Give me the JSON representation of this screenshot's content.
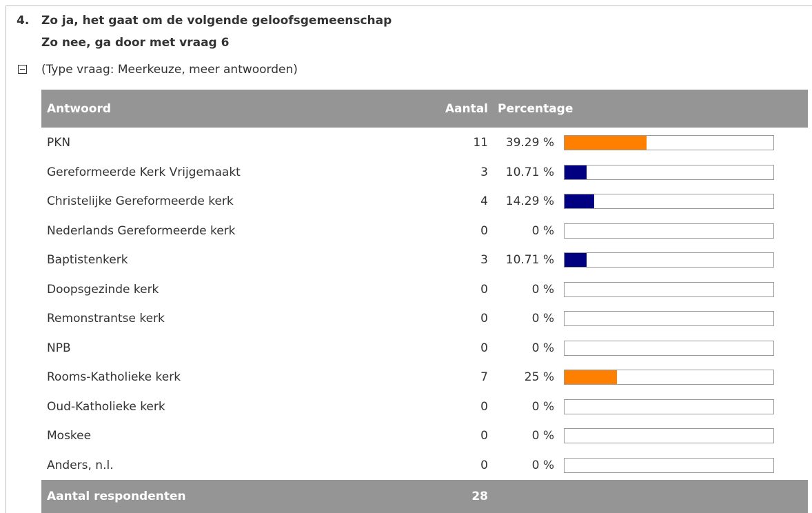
{
  "question": {
    "number": "4.",
    "line1": "Zo ja, het gaat om de volgende geloofsgemeenschap",
    "line2": "Zo nee, ga door met vraag 6",
    "type": "(Type vraag: Meerkeuze, meer antwoorden)"
  },
  "table": {
    "header": {
      "answer": "Antwoord",
      "count": "Aantal",
      "percentage": "Percentage"
    },
    "bar_scale": [
      0,
      100
    ],
    "rows": [
      {
        "label": "PKN",
        "count": 11,
        "percentage": 39.29,
        "percentage_label": "39.29 %",
        "color": "#ff8000"
      },
      {
        "label": "Gereformeerde Kerk Vrijgemaakt",
        "count": 3,
        "percentage": 10.71,
        "percentage_label": "10.71 %",
        "color": "#000080"
      },
      {
        "label": "Christelijke Gereformeerde kerk",
        "count": 4,
        "percentage": 14.29,
        "percentage_label": "14.29 %",
        "color": "#000080"
      },
      {
        "label": "Nederlands Gereformeerde kerk",
        "count": 0,
        "percentage": 0,
        "percentage_label": "0 %",
        "color": "#000080"
      },
      {
        "label": "Baptistenkerk",
        "count": 3,
        "percentage": 10.71,
        "percentage_label": "10.71 %",
        "color": "#000080"
      },
      {
        "label": "Doopsgezinde kerk",
        "count": 0,
        "percentage": 0,
        "percentage_label": "0 %",
        "color": "#000080"
      },
      {
        "label": "Remonstrantse kerk",
        "count": 0,
        "percentage": 0,
        "percentage_label": "0 %",
        "color": "#000080"
      },
      {
        "label": "NPB",
        "count": 0,
        "percentage": 0,
        "percentage_label": "0 %",
        "color": "#000080"
      },
      {
        "label": "Rooms-Katholieke kerk",
        "count": 7,
        "percentage": 25,
        "percentage_label": "25 %",
        "color": "#ff8000"
      },
      {
        "label": "Oud-Katholieke kerk",
        "count": 0,
        "percentage": 0,
        "percentage_label": "0 %",
        "color": "#000080"
      },
      {
        "label": "Moskee",
        "count": 0,
        "percentage": 0,
        "percentage_label": "0 %",
        "color": "#000080"
      },
      {
        "label": "Anders, n.l.",
        "count": 0,
        "percentage": 0,
        "percentage_label": "0 %",
        "color": "#000080"
      }
    ],
    "footer": {
      "label": "Aantal respondenten",
      "count": 28
    }
  }
}
